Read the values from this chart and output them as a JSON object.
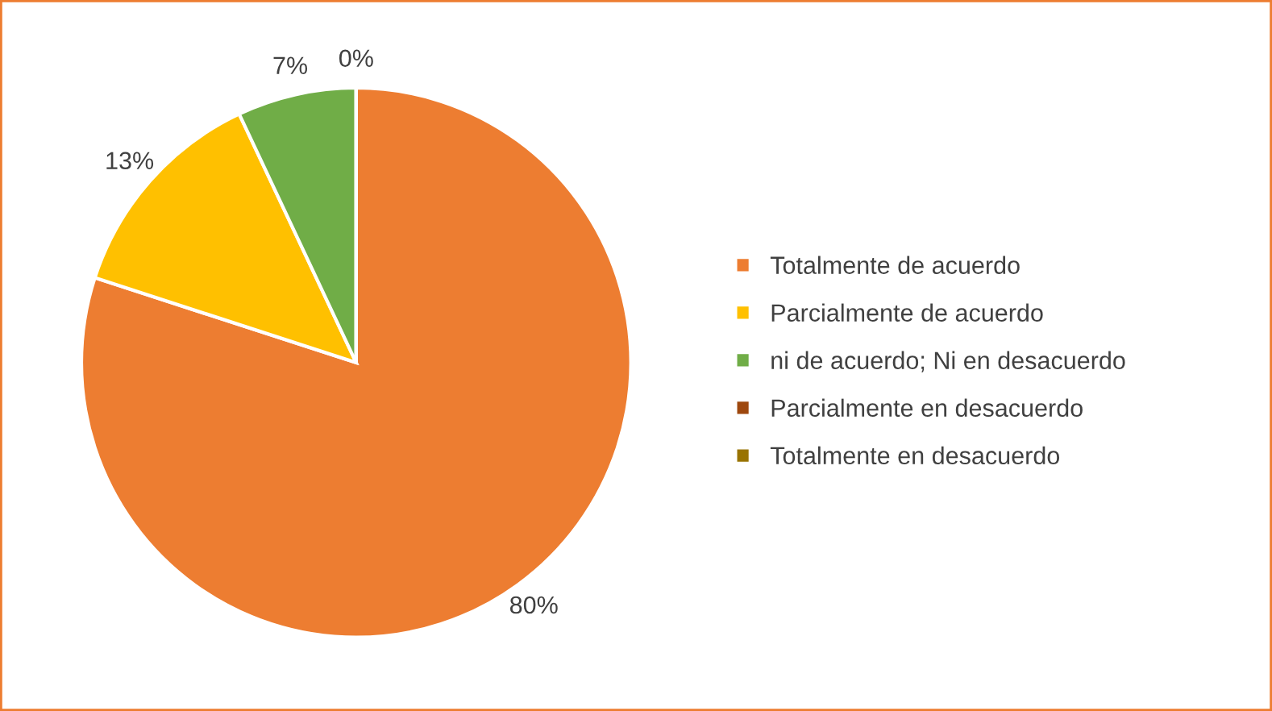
{
  "chart_data": {
    "type": "pie",
    "categories": [
      "Totalmente de acuerdo",
      "Parcialmente de acuerdo",
      "ni de acuerdo; Ni en desacuerdo",
      "Parcialmente en desacuerdo",
      "Totalmente en desacuerdo"
    ],
    "values": [
      80,
      13,
      7,
      0,
      0
    ],
    "colors": [
      "#ed7d31",
      "#ffc000",
      "#70ad47",
      "#9e480e",
      "#997300"
    ],
    "value_labels": [
      "80%",
      "13%",
      "7%",
      "0%",
      null
    ],
    "legend": "right"
  }
}
